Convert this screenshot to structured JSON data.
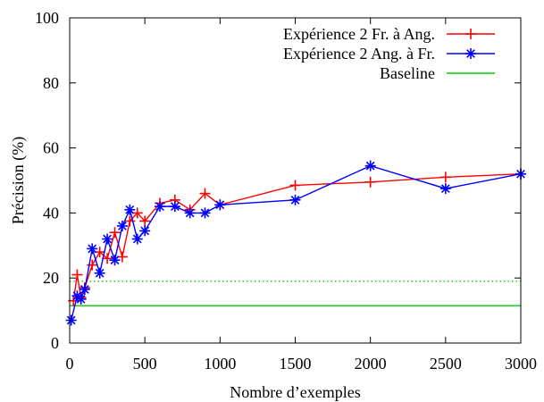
{
  "chart_data": {
    "type": "line",
    "xlabel": "Nombre d’exemples",
    "ylabel": "Précision (%)",
    "xlim": [
      0,
      3000
    ],
    "ylim": [
      0,
      100
    ],
    "xticks": [
      0,
      500,
      1000,
      1500,
      2000,
      2500,
      3000
    ],
    "yticks": [
      0,
      20,
      40,
      60,
      80,
      100
    ],
    "grid": false,
    "legend_position": "top-right",
    "series": [
      {
        "name": "Expérience 2 Fr. à Ang.",
        "color": "#ff0000",
        "marker": "plus",
        "x": [
          25,
          50,
          75,
          100,
          150,
          200,
          250,
          300,
          350,
          400,
          450,
          500,
          600,
          700,
          800,
          900,
          1000,
          1500,
          2000,
          2500,
          3000
        ],
        "y": [
          13,
          21,
          14,
          17,
          24,
          28,
          26,
          34,
          26.5,
          37.5,
          40,
          37.5,
          43,
          44,
          41,
          46,
          42.5,
          48.5,
          49.5,
          51,
          52
        ]
      },
      {
        "name": "Expérience 2 Ang. à Fr.",
        "color": "#0000ff",
        "marker": "asterisk",
        "x": [
          10,
          50,
          75,
          100,
          150,
          200,
          250,
          300,
          350,
          400,
          450,
          500,
          600,
          700,
          800,
          900,
          1000,
          1500,
          2000,
          2500,
          3000
        ],
        "y": [
          7,
          14.5,
          13.5,
          16.5,
          29,
          21.5,
          32,
          25.5,
          36,
          41,
          32,
          34.5,
          42,
          42,
          40,
          40,
          42.5,
          44,
          54.5,
          47.5,
          52
        ]
      },
      {
        "name": "Baseline",
        "color": "#00cc00",
        "marker": "none",
        "x": [
          0,
          3000
        ],
        "y": [
          11.5,
          11.5
        ]
      }
    ],
    "reference_lines": [
      {
        "y": 19,
        "color": "#00cc00",
        "style": "dotted"
      }
    ]
  }
}
